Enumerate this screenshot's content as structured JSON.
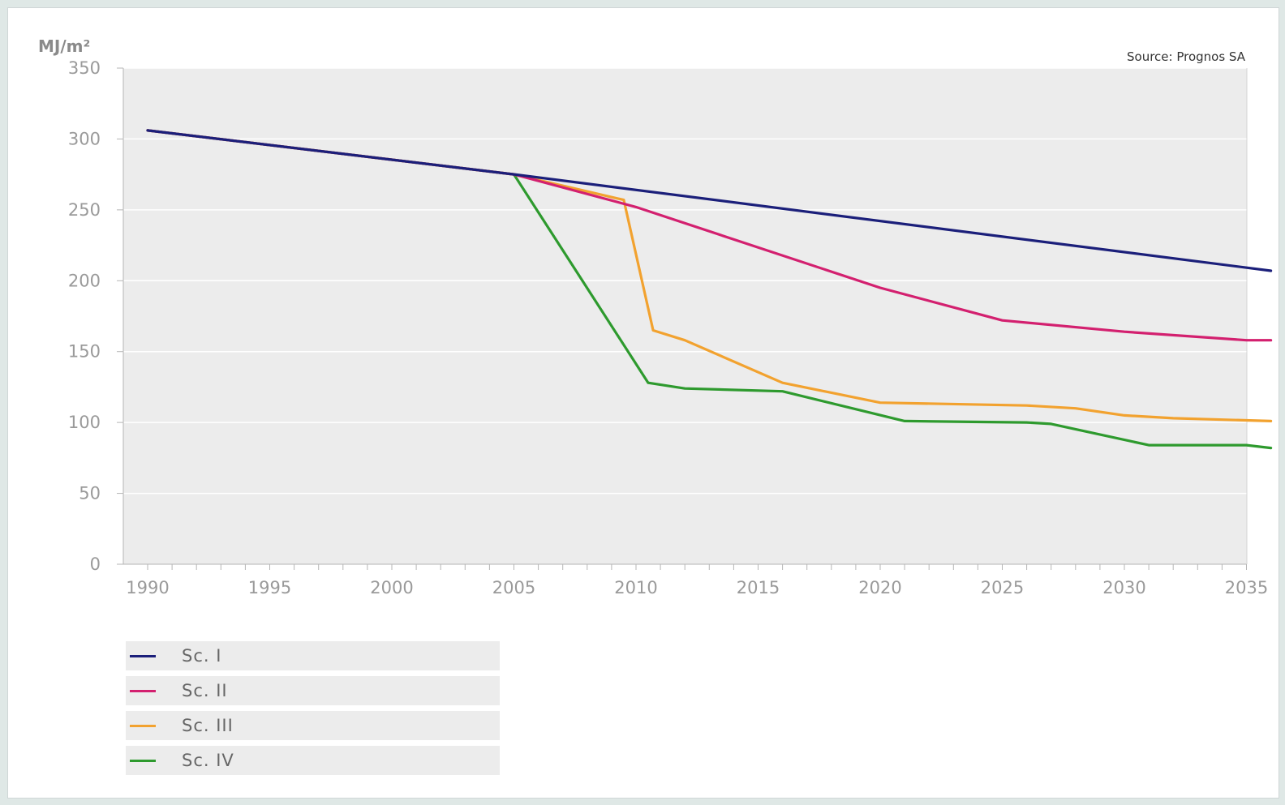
{
  "chart_data": {
    "type": "line",
    "ylabel": "MJ/m²",
    "source": "Source: Prognos SA",
    "xlim": [
      1990,
      2036
    ],
    "ylim": [
      0,
      350
    ],
    "x_ticks": [
      "1990",
      "1995",
      "2000",
      "2005",
      "2010",
      "2015",
      "2020",
      "2025",
      "2030",
      "2035"
    ],
    "y_ticks": [
      "0",
      "50",
      "100",
      "150",
      "200",
      "250",
      "300",
      "350"
    ],
    "grid": true,
    "legend_position": "bottom-left",
    "series": [
      {
        "name": "Sc. I",
        "color": "#1b1f7a",
        "points": [
          [
            1990,
            306
          ],
          [
            2005,
            275
          ],
          [
            2036,
            207
          ]
        ]
      },
      {
        "name": "Sc. II",
        "color": "#d3206f",
        "points": [
          [
            1990,
            306
          ],
          [
            2005,
            275
          ],
          [
            2010,
            252
          ],
          [
            2020,
            195
          ],
          [
            2025,
            172
          ],
          [
            2030,
            164
          ],
          [
            2035,
            158
          ],
          [
            2036,
            158
          ]
        ]
      },
      {
        "name": "Sc. III",
        "color": "#f2a22f",
        "points": [
          [
            1990,
            306
          ],
          [
            2005,
            275
          ],
          [
            2009.5,
            257
          ],
          [
            2010.7,
            165
          ],
          [
            2012,
            158
          ],
          [
            2016,
            128
          ],
          [
            2020,
            114
          ],
          [
            2026,
            112
          ],
          [
            2028,
            110
          ],
          [
            2030,
            105
          ],
          [
            2032,
            103
          ],
          [
            2036,
            101
          ]
        ]
      },
      {
        "name": "Sc. IV",
        "color": "#2e9a2e",
        "points": [
          [
            1990,
            306
          ],
          [
            2005,
            275
          ],
          [
            2010.5,
            128
          ],
          [
            2012,
            124
          ],
          [
            2016,
            122
          ],
          [
            2021,
            101
          ],
          [
            2026,
            100
          ],
          [
            2027,
            99
          ],
          [
            2031,
            84
          ],
          [
            2035,
            84
          ],
          [
            2036,
            82
          ]
        ]
      }
    ]
  }
}
